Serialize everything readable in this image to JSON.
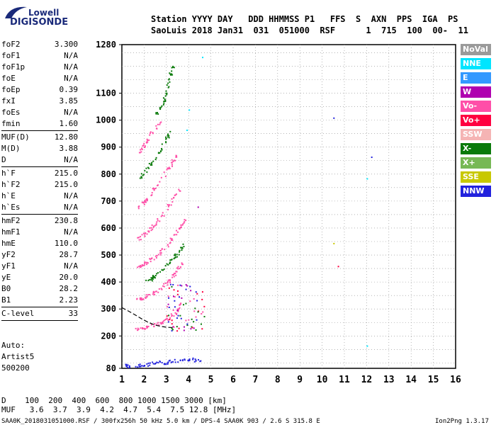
{
  "logo": {
    "lowell": "Lowell",
    "digisonde": "DIGISONDE"
  },
  "header": {
    "line1": "Station YYYY DAY   DDD HHMMSS P1   FFS  S  AXN  PPS  IGA  PS",
    "line2": "SaoLuis 2018 Jan31  031  051000  RSF      1  715  100  00-  11"
  },
  "params": [
    {
      "name": "foF2",
      "value": "3.300"
    },
    {
      "name": "foF1",
      "value": "N/A"
    },
    {
      "name": "foF1p",
      "value": "N/A"
    },
    {
      "name": "foE",
      "value": "N/A"
    },
    {
      "name": "foEp",
      "value": "0.39"
    },
    {
      "name": "fxI",
      "value": "3.85"
    },
    {
      "name": "foEs",
      "value": "N/A"
    },
    {
      "name": "fmin",
      "value": "1.60"
    },
    {
      "sep": true
    },
    {
      "name": "MUF(D)",
      "value": "12.80"
    },
    {
      "name": "M(D)",
      "value": "3.88"
    },
    {
      "name": "D",
      "value": "N/A"
    },
    {
      "sep": true
    },
    {
      "name": "h`F",
      "value": "215.0"
    },
    {
      "name": "h`F2",
      "value": "215.0"
    },
    {
      "name": "h`E",
      "value": "N/A"
    },
    {
      "name": "h`Es",
      "value": "N/A"
    },
    {
      "sep": true
    },
    {
      "name": "hmF2",
      "value": "230.8"
    },
    {
      "name": "hmF1",
      "value": "N/A"
    },
    {
      "name": "hmE",
      "value": "110.0"
    },
    {
      "name": "yF2",
      "value": "28.7"
    },
    {
      "name": "yF1",
      "value": "N/A"
    },
    {
      "name": "yE",
      "value": "20.0"
    },
    {
      "name": "B0",
      "value": "28.2"
    },
    {
      "name": "B1",
      "value": "2.23"
    },
    {
      "sep": true
    },
    {
      "name": "C-level",
      "value": "33"
    },
    {
      "sep": true
    }
  ],
  "autoscale": {
    "line1": "Auto:",
    "line2": "Artist5",
    "line3": "500200"
  },
  "legend": [
    {
      "label": "NoVal",
      "color": "#9a9a9a"
    },
    {
      "label": "NNE",
      "color": "#00e5ff"
    },
    {
      "label": "E",
      "color": "#3399ff"
    },
    {
      "label": "W",
      "color": "#b000b0"
    },
    {
      "label": "Vo-",
      "color": "#ff4fa8"
    },
    {
      "label": "Vo+",
      "color": "#ff0040"
    },
    {
      "label": "SSW",
      "color": "#f5b4b4"
    },
    {
      "label": "X-",
      "color": "#0a7a0a"
    },
    {
      "label": "X+",
      "color": "#77b855"
    },
    {
      "label": "SSE",
      "color": "#c8c800"
    },
    {
      "label": "NNW",
      "color": "#2222dd"
    }
  ],
  "footer": {
    "d_row": "D    100  200  400  600  800 1000 1500 3000 [km]",
    "muf_row": "MUF   3.6  3.7  3.9  4.2  4.7  5.4  7.5 12.8 [MHz]",
    "file": "SAA0K_2018031051000.RSF / 300fx256h 50 kHz 5.0 km / DPS-4 SAA0K 903 / 2.6 S 315.8 E",
    "version": "Ion2Png 1.3.17"
  },
  "chart_data": {
    "type": "scatter",
    "title": "",
    "xlabel": "",
    "ylabel": "",
    "xlim": [
      1,
      16
    ],
    "ylim": [
      80,
      1280
    ],
    "x_ticks": [
      "1",
      "2",
      "3",
      "4",
      "5",
      "6",
      "7",
      "8",
      "9",
      "10",
      "11",
      "12",
      "13",
      "14",
      "15",
      "16"
    ],
    "y_ticks": [
      "80",
      "200",
      "300",
      "400",
      "500",
      "600",
      "700",
      "800",
      "900",
      "1000",
      "1100",
      "1280"
    ],
    "grid": true,
    "traces": [
      {
        "name": "",
        "color": "#2222dd",
        "points": [
          [
            1.1,
            90
          ],
          [
            1.5,
            92
          ],
          [
            2.0,
            95
          ],
          [
            2.5,
            100
          ],
          [
            3.0,
            105
          ],
          [
            3.5,
            110
          ],
          [
            4.0,
            112
          ],
          [
            4.5,
            115
          ]
        ]
      },
      {
        "name": "",
        "color": "#ff4fa8",
        "points": [
          [
            1.6,
            230
          ],
          [
            2.0,
            232
          ],
          [
            2.4,
            240
          ],
          [
            2.8,
            255
          ],
          [
            3.2,
            275
          ],
          [
            3.5,
            300
          ],
          [
            3.7,
            330
          ]
        ]
      },
      {
        "name": "",
        "color": "#ff4fa8",
        "points": [
          [
            1.6,
            340
          ],
          [
            2.0,
            345
          ],
          [
            2.4,
            360
          ],
          [
            2.8,
            385
          ],
          [
            3.1,
            405
          ],
          [
            3.4,
            440
          ],
          [
            3.7,
            475
          ]
        ]
      },
      {
        "name": "",
        "color": "#0a7a0a",
        "points": [
          [
            2.0,
            400
          ],
          [
            2.4,
            420
          ],
          [
            2.8,
            450
          ],
          [
            3.2,
            480
          ],
          [
            3.5,
            510
          ],
          [
            3.8,
            540
          ]
        ]
      },
      {
        "name": "",
        "color": "#ff4fa8",
        "points": [
          [
            1.7,
            460
          ],
          [
            2.0,
            470
          ],
          [
            2.4,
            490
          ],
          [
            2.8,
            520
          ],
          [
            3.2,
            560
          ],
          [
            3.6,
            600
          ],
          [
            3.8,
            640
          ]
        ]
      },
      {
        "name": "",
        "color": "#ff4fa8",
        "points": [
          [
            1.7,
            560
          ],
          [
            2.0,
            580
          ],
          [
            2.4,
            610
          ],
          [
            2.8,
            650
          ],
          [
            3.2,
            700
          ],
          [
            3.6,
            750
          ]
        ]
      },
      {
        "name": "",
        "color": "#ff4fa8",
        "points": [
          [
            1.7,
            680
          ],
          [
            2.0,
            700
          ],
          [
            2.4,
            740
          ],
          [
            2.8,
            790
          ],
          [
            3.2,
            840
          ],
          [
            3.5,
            880
          ]
        ]
      },
      {
        "name": "",
        "color": "#0a7a0a",
        "points": [
          [
            1.8,
            790
          ],
          [
            2.1,
            820
          ],
          [
            2.5,
            860
          ],
          [
            2.9,
            920
          ],
          [
            3.2,
            970
          ]
        ]
      },
      {
        "name": "",
        "color": "#ff4fa8",
        "points": [
          [
            1.8,
            880
          ],
          [
            2.0,
            910
          ],
          [
            2.3,
            950
          ],
          [
            2.7,
            1000
          ]
        ]
      },
      {
        "name": "",
        "color": "#0a7a0a",
        "points": [
          [
            2.5,
            1020
          ],
          [
            2.8,
            1060
          ],
          [
            3.0,
            1100
          ],
          [
            3.1,
            1160
          ],
          [
            3.3,
            1200
          ]
        ]
      }
    ],
    "isolated": [
      {
        "x": 10.5,
        "y": 1010,
        "color": "#2222dd"
      },
      {
        "x": 12.2,
        "y": 865,
        "color": "#2222dd"
      },
      {
        "x": 12.0,
        "y": 785,
        "color": "#00e5ff"
      },
      {
        "x": 10.5,
        "y": 545,
        "color": "#c8c800"
      },
      {
        "x": 10.7,
        "y": 460,
        "color": "#ff0040"
      },
      {
        "x": 12.0,
        "y": 165,
        "color": "#00e5ff"
      },
      {
        "x": 4.6,
        "y": 1235,
        "color": "#00e5ff"
      },
      {
        "x": 4.0,
        "y": 1040,
        "color": "#00e5ff"
      },
      {
        "x": 3.9,
        "y": 965,
        "color": "#00e5ff"
      },
      {
        "x": 4.4,
        "y": 680,
        "color": "#b000b0"
      }
    ],
    "profile_curve": {
      "color": "#000000",
      "points": [
        [
          1.0,
          305
        ],
        [
          1.3,
          292
        ],
        [
          1.6,
          278
        ],
        [
          1.9,
          263
        ],
        [
          2.2,
          250
        ],
        [
          2.5,
          240
        ],
        [
          2.8,
          235
        ],
        [
          3.05,
          232
        ],
        [
          3.3,
          231
        ]
      ]
    }
  }
}
